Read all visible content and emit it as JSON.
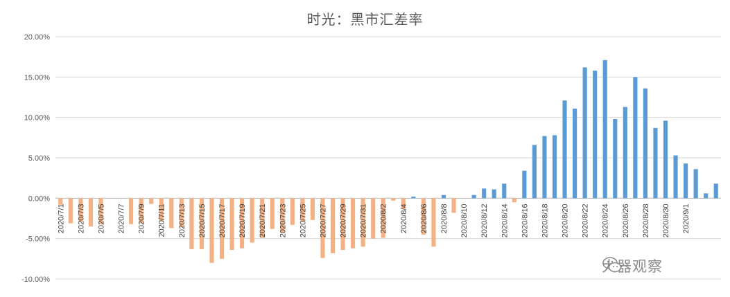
{
  "chart_data": {
    "type": "bar",
    "title": "时光：黑市汇差率",
    "y_tick_labels": [
      "20.00%",
      "15.00%",
      "10.00%",
      "5.00%",
      "0.00%",
      "-5.00%",
      "-10.00%"
    ],
    "ylim": [
      -10,
      20
    ],
    "grid": true,
    "x_tick_labels": [
      "2020/7/1",
      "2020/7/3",
      "2020/7/5",
      "2020/7/7",
      "2020/7/9",
      "2020/7/11",
      "2020/7/13",
      "2020/7/15",
      "2020/7/17",
      "2020/7/19",
      "2020/7/21",
      "2020/7/23",
      "2020/7/25",
      "2020/7/27",
      "2020/7/29",
      "2020/7/31",
      "2020/8/2",
      "2020/8/4",
      "2020/8/6",
      "2020/8/8",
      "2020/8/10",
      "2020/8/12",
      "2020/8/14",
      "2020/8/16",
      "2020/8/18",
      "2020/8/20",
      "2020/8/22",
      "2020/8/24",
      "2020/8/26",
      "2020/8/28",
      "2020/8/30",
      "2020/9/1"
    ],
    "colors": {
      "positive": "#5b9bd5",
      "negative": "#f4b183"
    },
    "series": [
      {
        "values": [
          -0.8,
          -3.1,
          -2.9,
          -3.5,
          -3.2,
          0,
          0,
          -3.2,
          -3.1,
          -0.7,
          -2.8,
          -3.7,
          -3.6,
          -6.3,
          -6.3,
          -8.0,
          -7.5,
          -6.4,
          -6.2,
          -5.5,
          -4.9,
          -3.8,
          -4.2,
          -3.3,
          -2.9,
          -2.7,
          -7.4,
          -6.8,
          -6.4,
          -6.2,
          -6.0,
          -5.0,
          -4.9,
          -0.3,
          -1.3,
          0.2,
          -4.5,
          -6.0,
          0.4,
          -1.8,
          0,
          0.4,
          1.2,
          1.1,
          1.8,
          -0.5,
          3.4,
          6.6,
          7.7,
          7.8,
          12.1,
          11.1,
          16.2,
          15.8,
          17.1,
          9.8,
          11.3,
          15.0,
          13.6,
          8.7,
          9.6,
          5.3,
          4.3,
          3.6,
          0.6,
          1.8
        ]
      }
    ]
  },
  "watermark": {
    "text": "大器观察",
    "icon": "wechat-bubble-icon"
  }
}
